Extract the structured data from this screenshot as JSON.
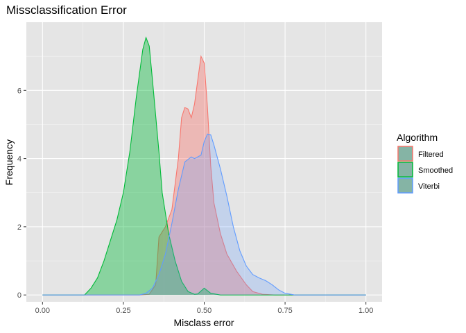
{
  "chart_data": {
    "type": "area",
    "title": "Missclassification Error",
    "xlabel": "Misclass error",
    "ylabel": "Frequency",
    "xlim": [
      -0.05,
      1.05
    ],
    "ylim": [
      -0.2,
      8.0
    ],
    "x_ticks": [
      0.0,
      0.25,
      0.5,
      0.75,
      1.0
    ],
    "x_tick_labels": [
      "0.00",
      "0.25",
      "0.50",
      "0.75",
      "1.00"
    ],
    "y_ticks": [
      0,
      2,
      4,
      6
    ],
    "y_tick_labels": [
      "0",
      "2",
      "4",
      "6"
    ],
    "grid": true,
    "background": "#e5e5e5",
    "legend": {
      "title": "Algorithm",
      "position": "right",
      "entries": [
        "Filtered",
        "Smoothed",
        "Viterbi"
      ]
    },
    "series": [
      {
        "name": "Filtered",
        "line_color": "#F8766D",
        "fill_color": "#F8766D",
        "fill_opacity": 0.4,
        "points": [
          [
            0.0,
            0
          ],
          [
            0.3,
            0
          ],
          [
            0.33,
            0.02
          ],
          [
            0.35,
            0.3
          ],
          [
            0.36,
            1.7
          ],
          [
            0.38,
            2.0
          ],
          [
            0.4,
            2.5
          ],
          [
            0.42,
            4.0
          ],
          [
            0.43,
            5.2
          ],
          [
            0.44,
            5.5
          ],
          [
            0.45,
            5.45
          ],
          [
            0.46,
            5.2
          ],
          [
            0.47,
            5.6
          ],
          [
            0.48,
            6.3
          ],
          [
            0.49,
            7.0
          ],
          [
            0.5,
            6.8
          ],
          [
            0.51,
            5.5
          ],
          [
            0.52,
            3.8
          ],
          [
            0.53,
            2.7
          ],
          [
            0.55,
            1.8
          ],
          [
            0.57,
            1.2
          ],
          [
            0.6,
            0.7
          ],
          [
            0.63,
            0.3
          ],
          [
            0.65,
            0.1
          ],
          [
            0.68,
            0.02
          ],
          [
            0.72,
            0
          ],
          [
            1.0,
            0
          ]
        ]
      },
      {
        "name": "Smoothed",
        "line_color": "#00BA38",
        "fill_color": "#00BA38",
        "fill_opacity": 0.4,
        "points": [
          [
            0.0,
            0
          ],
          [
            0.13,
            0
          ],
          [
            0.15,
            0.2
          ],
          [
            0.17,
            0.5
          ],
          [
            0.19,
            1.0
          ],
          [
            0.21,
            1.6
          ],
          [
            0.23,
            2.2
          ],
          [
            0.25,
            3.0
          ],
          [
            0.27,
            4.2
          ],
          [
            0.29,
            5.8
          ],
          [
            0.31,
            7.2
          ],
          [
            0.32,
            7.55
          ],
          [
            0.33,
            7.3
          ],
          [
            0.34,
            6.3
          ],
          [
            0.36,
            4.2
          ],
          [
            0.37,
            3.0
          ],
          [
            0.39,
            1.8
          ],
          [
            0.41,
            1.0
          ],
          [
            0.43,
            0.4
          ],
          [
            0.45,
            0.1
          ],
          [
            0.47,
            0.02
          ],
          [
            0.48,
            0.03
          ],
          [
            0.5,
            0.2
          ],
          [
            0.52,
            0.05
          ],
          [
            0.55,
            0
          ],
          [
            1.0,
            0
          ]
        ]
      },
      {
        "name": "Viterbi",
        "line_color": "#619CFF",
        "fill_color": "#619CFF",
        "fill_opacity": 0.25,
        "points": [
          [
            0.0,
            0
          ],
          [
            0.3,
            0
          ],
          [
            0.32,
            0.05
          ],
          [
            0.34,
            0.2
          ],
          [
            0.36,
            0.6
          ],
          [
            0.38,
            1.2
          ],
          [
            0.4,
            2.1
          ],
          [
            0.42,
            3.1
          ],
          [
            0.44,
            3.9
          ],
          [
            0.46,
            4.05
          ],
          [
            0.47,
            4.0
          ],
          [
            0.49,
            4.1
          ],
          [
            0.5,
            4.5
          ],
          [
            0.51,
            4.72
          ],
          [
            0.52,
            4.7
          ],
          [
            0.53,
            4.4
          ],
          [
            0.55,
            3.7
          ],
          [
            0.57,
            2.9
          ],
          [
            0.59,
            2.0
          ],
          [
            0.61,
            1.3
          ],
          [
            0.63,
            0.85
          ],
          [
            0.65,
            0.6
          ],
          [
            0.67,
            0.5
          ],
          [
            0.69,
            0.42
          ],
          [
            0.71,
            0.3
          ],
          [
            0.73,
            0.15
          ],
          [
            0.75,
            0.05
          ],
          [
            0.78,
            0
          ],
          [
            1.0,
            0
          ]
        ]
      }
    ]
  }
}
